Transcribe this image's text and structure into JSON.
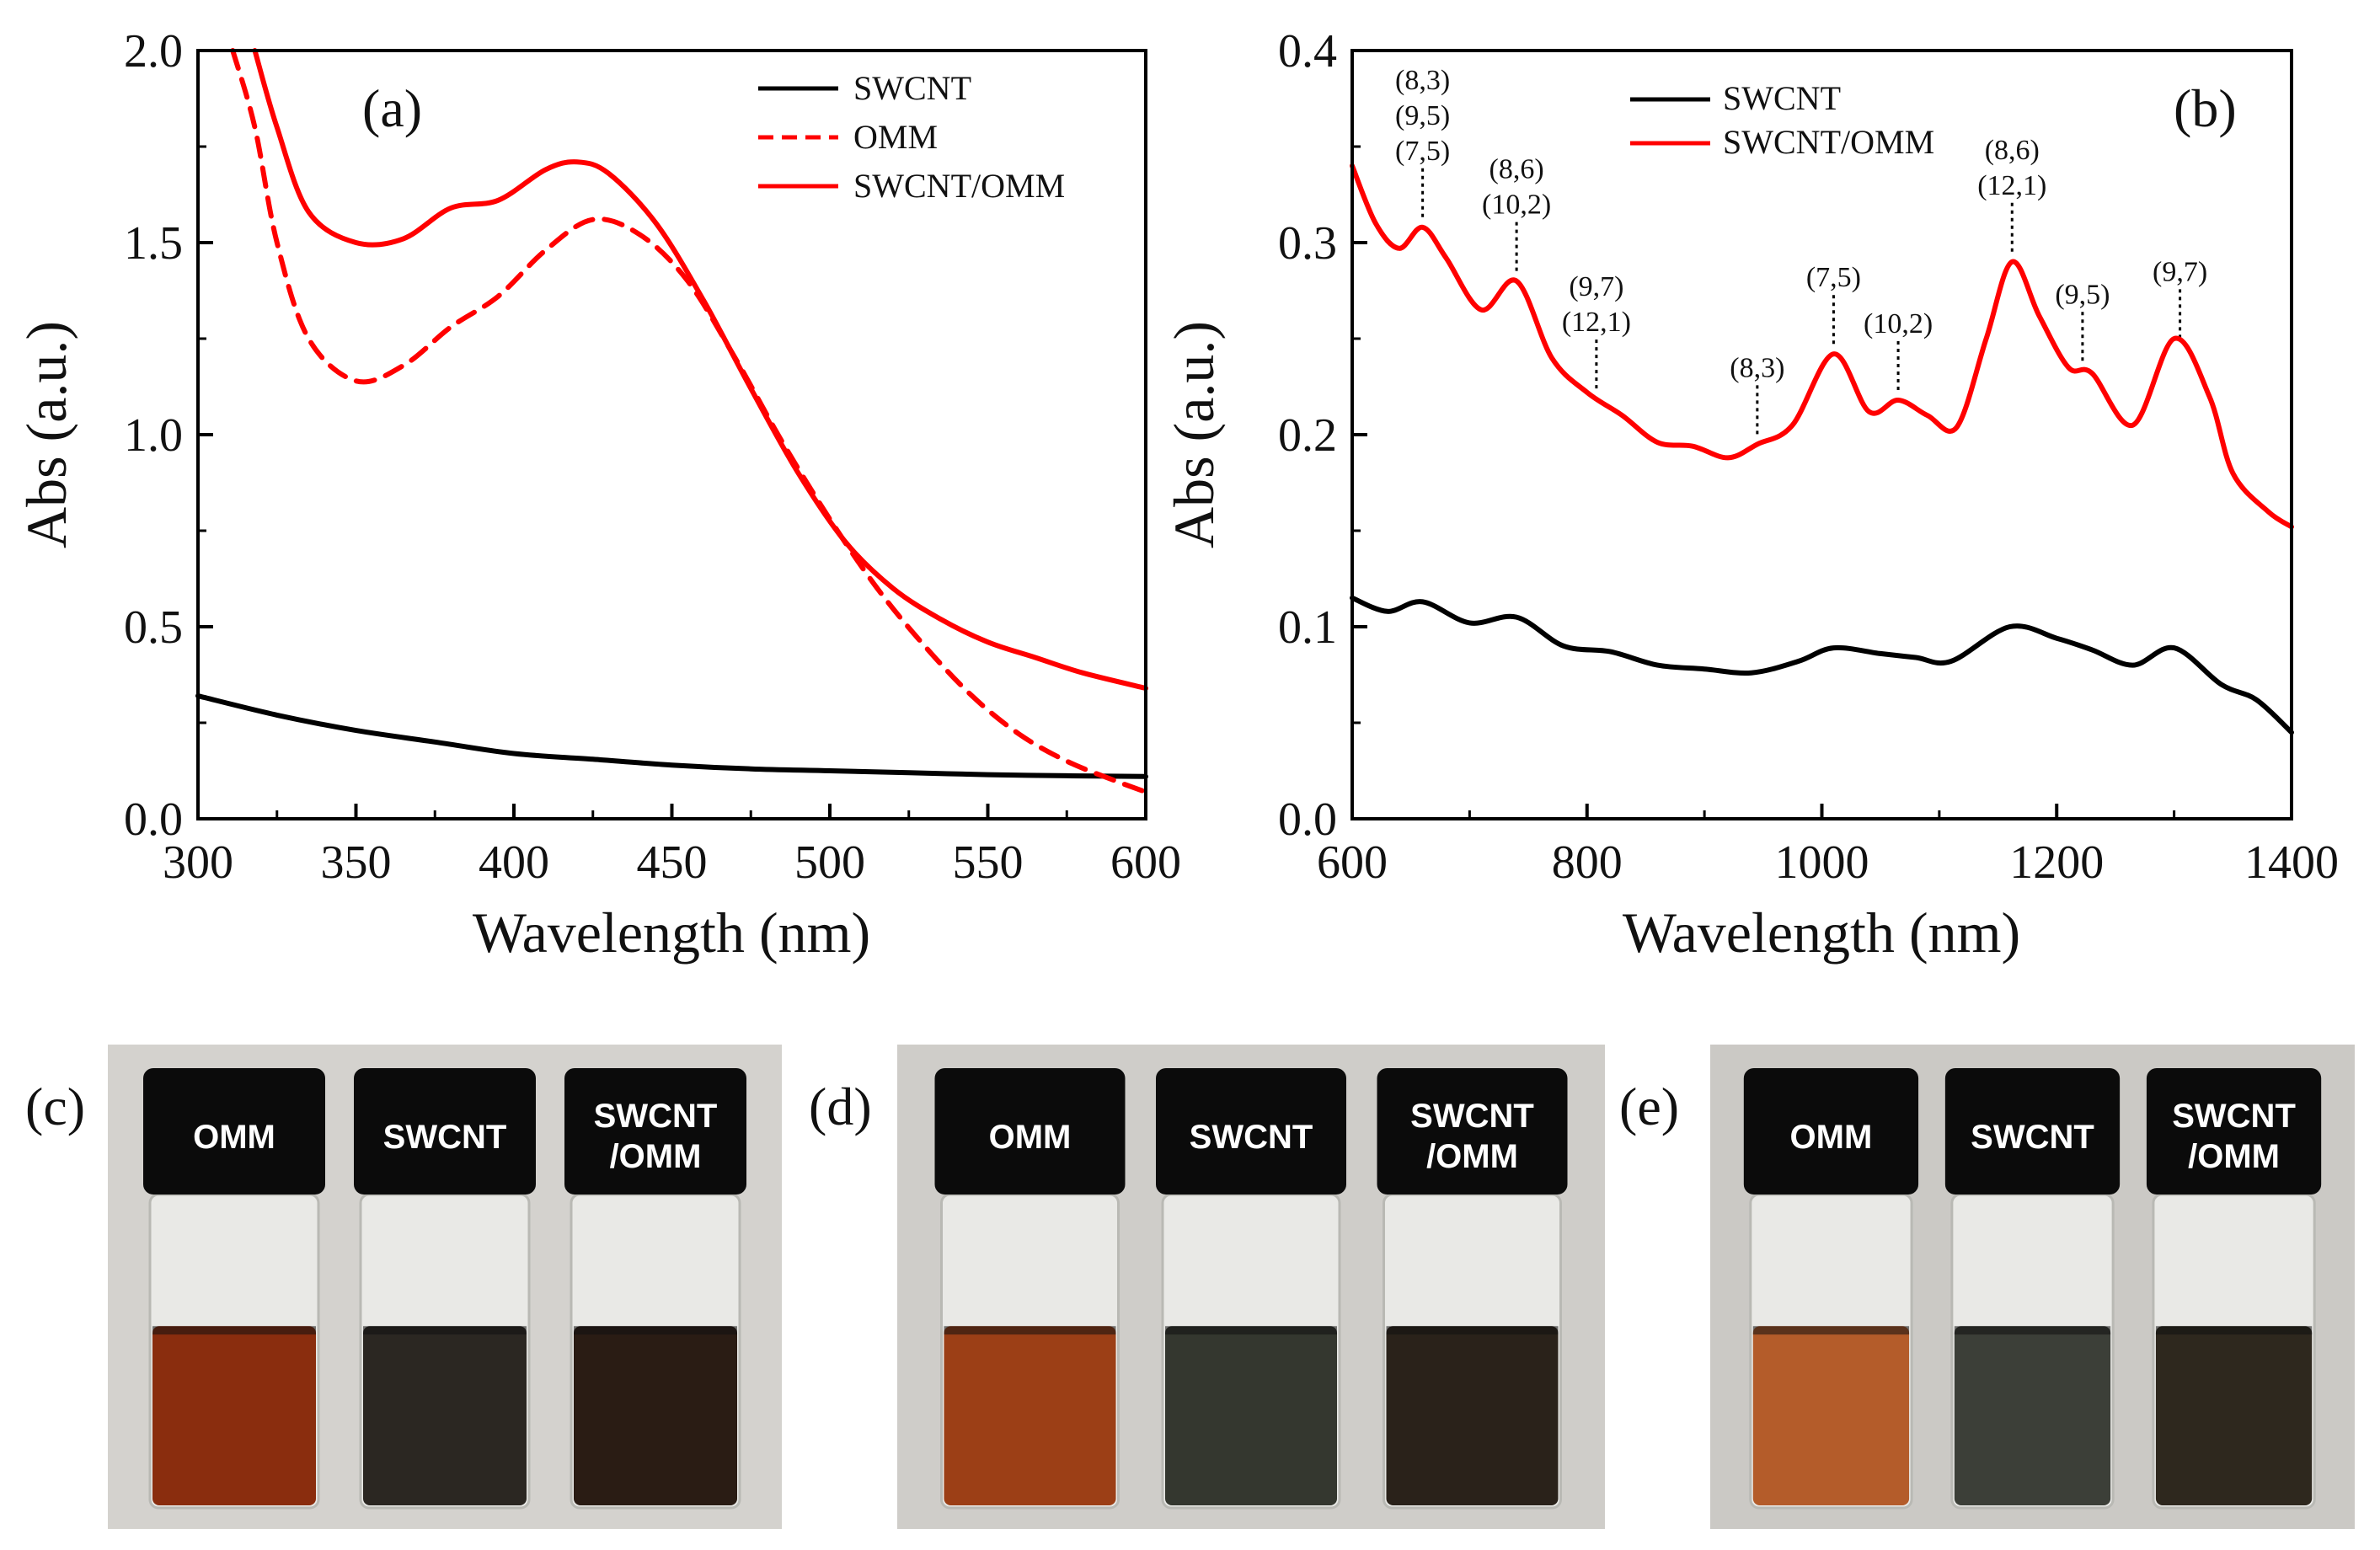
{
  "chart_data": [
    {
      "id": "a",
      "type": "line",
      "panel_label": "(a)",
      "xlabel": "Wavelength (nm)",
      "ylabel": "Abs (a.u.)",
      "xlim": [
        300,
        600
      ],
      "ylim": [
        0,
        2.0
      ],
      "xticks": [
        "300",
        "350",
        "400",
        "450",
        "500",
        "550",
        "600"
      ],
      "yticks": [
        "0.0",
        "0.5",
        "1.0",
        "1.5",
        "2.0"
      ],
      "legend_position": "top-right",
      "series": [
        {
          "name": "SWCNT",
          "color": "#000000",
          "style": "solid",
          "x": [
            300,
            325,
            350,
            375,
            400,
            425,
            450,
            475,
            500,
            525,
            550,
            575,
            600
          ],
          "y": [
            0.32,
            0.27,
            0.23,
            0.2,
            0.17,
            0.155,
            0.14,
            0.13,
            0.125,
            0.12,
            0.115,
            0.112,
            0.11
          ]
        },
        {
          "name": "OMM",
          "color": "#ff0000",
          "style": "dashed",
          "x": [
            311,
            318,
            325,
            335,
            350,
            365,
            380,
            395,
            410,
            425,
            440,
            455,
            470,
            485,
            500,
            515,
            530,
            545,
            560,
            575,
            590,
            600
          ],
          "y": [
            2.0,
            1.8,
            1.5,
            1.25,
            1.14,
            1.18,
            1.28,
            1.36,
            1.48,
            1.56,
            1.52,
            1.4,
            1.2,
            0.98,
            0.78,
            0.6,
            0.45,
            0.32,
            0.22,
            0.15,
            0.1,
            0.07
          ]
        },
        {
          "name": "SWCNT/OMM",
          "color": "#ff0000",
          "style": "solid",
          "x": [
            318,
            325,
            335,
            350,
            365,
            380,
            395,
            410,
            420,
            430,
            445,
            460,
            475,
            490,
            505,
            520,
            535,
            550,
            565,
            580,
            600
          ],
          "y": [
            2.0,
            1.8,
            1.58,
            1.5,
            1.51,
            1.59,
            1.61,
            1.69,
            1.71,
            1.68,
            1.55,
            1.35,
            1.12,
            0.9,
            0.72,
            0.6,
            0.52,
            0.46,
            0.42,
            0.38,
            0.34
          ]
        }
      ]
    },
    {
      "id": "b",
      "type": "line",
      "panel_label": "(b)",
      "xlabel": "Wavelength (nm)",
      "ylabel": "Abs (a.u.)",
      "xlim": [
        600,
        1400
      ],
      "ylim": [
        0,
        0.4
      ],
      "xticks": [
        "600",
        "800",
        "1000",
        "1200",
        "1400"
      ],
      "yticks": [
        "0.0",
        "0.1",
        "0.2",
        "0.3",
        "0.4"
      ],
      "legend_position": "top-center",
      "series": [
        {
          "name": "SWCNT",
          "color": "#000000",
          "style": "solid",
          "x": [
            600,
            630,
            660,
            700,
            740,
            780,
            820,
            860,
            900,
            940,
            980,
            1010,
            1050,
            1080,
            1110,
            1160,
            1200,
            1230,
            1265,
            1300,
            1340,
            1370,
            1400
          ],
          "y": [
            0.115,
            0.108,
            0.113,
            0.102,
            0.105,
            0.09,
            0.087,
            0.08,
            0.078,
            0.076,
            0.082,
            0.089,
            0.086,
            0.084,
            0.082,
            0.1,
            0.094,
            0.088,
            0.08,
            0.089,
            0.07,
            0.062,
            0.045
          ]
        },
        {
          "name": "SWCNT/OMM",
          "color": "#ff0000",
          "style": "solid",
          "x": [
            600,
            620,
            640,
            660,
            680,
            710,
            740,
            770,
            800,
            830,
            860,
            890,
            920,
            945,
            975,
            1010,
            1040,
            1065,
            1090,
            1115,
            1140,
            1162,
            1185,
            1210,
            1230,
            1265,
            1300,
            1330,
            1350,
            1380,
            1400
          ],
          "y": [
            0.34,
            0.31,
            0.297,
            0.308,
            0.292,
            0.265,
            0.28,
            0.24,
            0.222,
            0.21,
            0.196,
            0.194,
            0.188,
            0.195,
            0.205,
            0.242,
            0.212,
            0.218,
            0.21,
            0.204,
            0.25,
            0.29,
            0.262,
            0.235,
            0.232,
            0.205,
            0.25,
            0.22,
            0.18,
            0.16,
            0.152
          ]
        }
      ],
      "annotations": [
        {
          "x": 660,
          "labels": [
            "(8,3)",
            "(9,5)",
            "(7,5)"
          ]
        },
        {
          "x": 740,
          "labels": [
            "(8,6)",
            "(10,2)"
          ]
        },
        {
          "x": 808,
          "labels": [
            "(9,7)",
            "(12,1)"
          ]
        },
        {
          "x": 945,
          "labels": [
            "(8,3)"
          ]
        },
        {
          "x": 1010,
          "labels": [
            "(7,5)"
          ]
        },
        {
          "x": 1065,
          "labels": [
            "(10,2)"
          ]
        },
        {
          "x": 1162,
          "labels": [
            "(8,6)",
            "(12,1)"
          ]
        },
        {
          "x": 1222,
          "labels": [
            "(9,5)"
          ]
        },
        {
          "x": 1305,
          "labels": [
            "(9,7)"
          ]
        }
      ]
    }
  ],
  "photos": [
    {
      "panel_label": "(c)",
      "vials": [
        {
          "line1": "OMM",
          "line2": "",
          "liquid": "#8a2d0e"
        },
        {
          "line1": "SWCNT",
          "line2": "",
          "liquid": "#2b2722"
        },
        {
          "line1": "SWCNT",
          "line2": "/OMM",
          "liquid": "#2a1c14"
        }
      ]
    },
    {
      "panel_label": "(d)",
      "vials": [
        {
          "line1": "OMM",
          "line2": "",
          "liquid": "#9c3f16"
        },
        {
          "line1": "SWCNT",
          "line2": "",
          "liquid": "#34372f"
        },
        {
          "line1": "SWCNT",
          "line2": "/OMM",
          "liquid": "#2a221a"
        }
      ]
    },
    {
      "panel_label": "(e)",
      "vials": [
        {
          "line1": "OMM",
          "line2": "",
          "liquid": "#b45c2a"
        },
        {
          "line1": "SWCNT",
          "line2": "",
          "liquid": "#3c3f38"
        },
        {
          "line1": "SWCNT",
          "line2": "/OMM",
          "liquid": "#2e281e"
        }
      ]
    }
  ]
}
